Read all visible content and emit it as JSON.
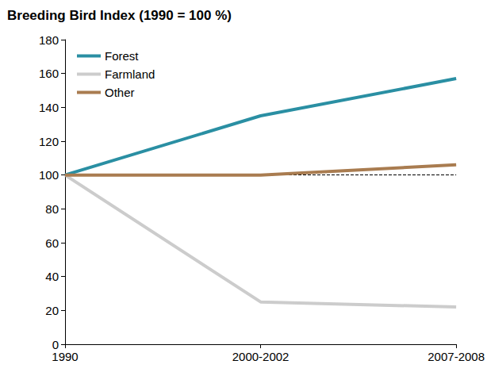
{
  "chart_data": {
    "type": "line",
    "title": "Breeding Bird Index (1990 = 100 %)",
    "categories": [
      "1990",
      "2000-2002",
      "2007-2008"
    ],
    "series": [
      {
        "name": "Forest",
        "color": "#2a8fa3",
        "values": [
          100,
          135,
          157
        ]
      },
      {
        "name": "Farmland",
        "color": "#cccccc",
        "values": [
          100,
          25,
          22
        ]
      },
      {
        "name": "Other",
        "color": "#a97c50",
        "values": [
          100,
          100,
          106
        ]
      }
    ],
    "baseline": 100,
    "ylim": [
      0,
      180
    ],
    "yticks": [
      0,
      20,
      40,
      60,
      80,
      100,
      120,
      140,
      160,
      180
    ],
    "grid": false,
    "legend": "upper left"
  }
}
